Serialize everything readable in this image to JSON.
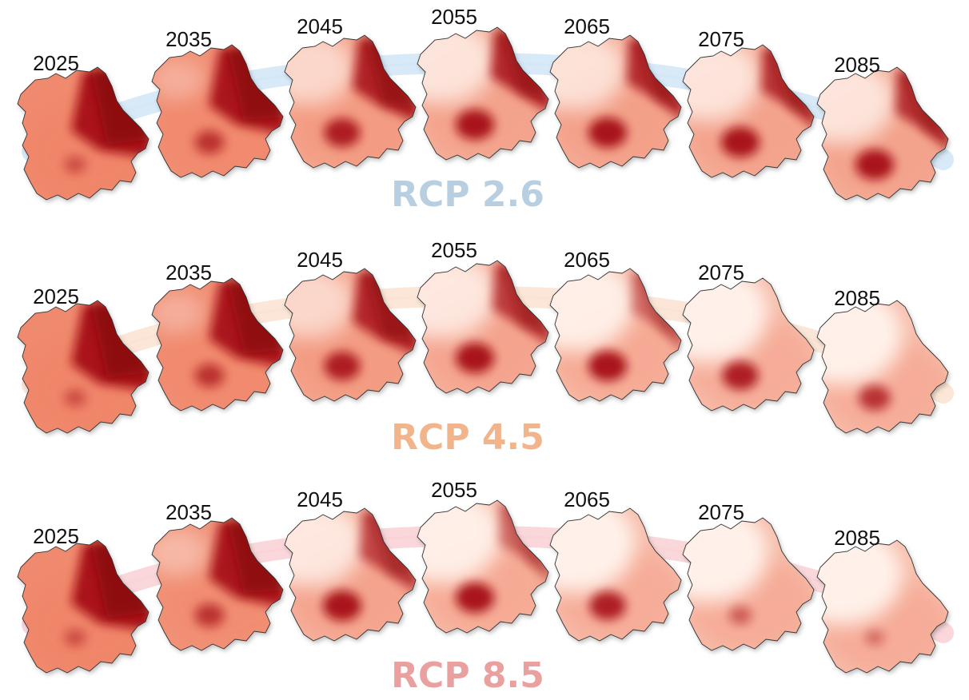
{
  "rows": [
    {
      "label": "RCP 2.6",
      "label_color": "#b7cfe0",
      "arc_color": "#d4e7f7",
      "maps": [
        {
          "year": "2025",
          "hot": {
            "ne": 1.0,
            "ne_reach": 1.0,
            "south": 0.25,
            "nw_cool": 0.0
          }
        },
        {
          "year": "2035",
          "hot": {
            "ne": 0.95,
            "ne_reach": 0.9,
            "south": 0.6,
            "nw_cool": 0.1
          }
        },
        {
          "year": "2045",
          "hot": {
            "ne": 0.85,
            "ne_reach": 0.6,
            "south": 0.9,
            "nw_cool": 0.55
          }
        },
        {
          "year": "2055",
          "hot": {
            "ne": 0.8,
            "ne_reach": 0.45,
            "south": 1.0,
            "nw_cool": 0.75
          }
        },
        {
          "year": "2065",
          "hot": {
            "ne": 0.75,
            "ne_reach": 0.35,
            "south": 1.0,
            "nw_cool": 0.7
          }
        },
        {
          "year": "2075",
          "hot": {
            "ne": 0.7,
            "ne_reach": 0.3,
            "south": 1.0,
            "nw_cool": 0.75
          }
        },
        {
          "year": "2085",
          "hot": {
            "ne": 0.7,
            "ne_reach": 0.3,
            "south": 1.0,
            "nw_cool": 0.75
          }
        }
      ]
    },
    {
      "label": "RCP 4.5",
      "label_color": "#f2b48a",
      "arc_color": "#fbe3d3",
      "maps": [
        {
          "year": "2025",
          "hot": {
            "ne": 1.0,
            "ne_reach": 1.0,
            "south": 0.25,
            "nw_cool": 0.0
          }
        },
        {
          "year": "2035",
          "hot": {
            "ne": 0.95,
            "ne_reach": 0.9,
            "south": 0.6,
            "nw_cool": 0.1
          }
        },
        {
          "year": "2045",
          "hot": {
            "ne": 0.8,
            "ne_reach": 0.6,
            "south": 0.9,
            "nw_cool": 0.55
          }
        },
        {
          "year": "2055",
          "hot": {
            "ne": 0.6,
            "ne_reach": 0.4,
            "south": 1.0,
            "nw_cool": 0.8
          }
        },
        {
          "year": "2065",
          "hot": {
            "ne": 0.2,
            "ne_reach": 0.2,
            "south": 1.0,
            "nw_cool": 0.95
          }
        },
        {
          "year": "2075",
          "hot": {
            "ne": 0.0,
            "ne_reach": 0.0,
            "south": 0.9,
            "nw_cool": 1.0
          }
        },
        {
          "year": "2085",
          "hot": {
            "ne": 0.0,
            "ne_reach": 0.0,
            "south": 0.7,
            "nw_cool": 1.0
          }
        }
      ]
    },
    {
      "label": "RCP 8.5",
      "label_color": "#eba0a0",
      "arc_color": "#f9d3d6",
      "maps": [
        {
          "year": "2025",
          "hot": {
            "ne": 1.0,
            "ne_reach": 1.0,
            "south": 0.25,
            "nw_cool": 0.0
          }
        },
        {
          "year": "2035",
          "hot": {
            "ne": 0.95,
            "ne_reach": 0.9,
            "south": 0.6,
            "nw_cool": 0.2
          }
        },
        {
          "year": "2045",
          "hot": {
            "ne": 0.5,
            "ne_reach": 0.4,
            "south": 1.0,
            "nw_cool": 0.8
          }
        },
        {
          "year": "2055",
          "hot": {
            "ne": 0.2,
            "ne_reach": 0.2,
            "south": 1.0,
            "nw_cool": 0.95
          }
        },
        {
          "year": "2065",
          "hot": {
            "ne": 0.0,
            "ne_reach": 0.0,
            "south": 0.9,
            "nw_cool": 1.0
          }
        },
        {
          "year": "2075",
          "hot": {
            "ne": 0.0,
            "ne_reach": 0.0,
            "south": 0.3,
            "nw_cool": 1.0
          }
        },
        {
          "year": "2085",
          "hot": {
            "ne": 0.0,
            "ne_reach": 0.0,
            "south": 0.15,
            "nw_cool": 1.0
          }
        }
      ]
    }
  ]
}
